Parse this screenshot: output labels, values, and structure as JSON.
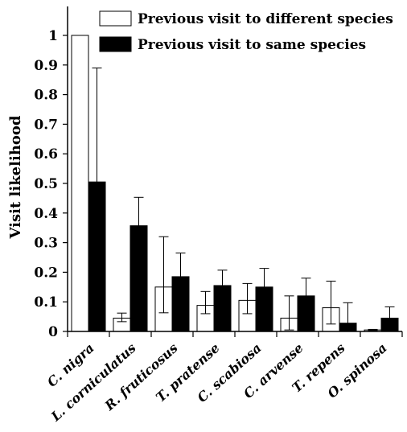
{
  "chart_data": {
    "type": "bar",
    "ylabel": "Visit likelihood",
    "ylim": [
      0,
      1.05
    ],
    "yticks": [
      0,
      0.1,
      0.2,
      0.3,
      0.4,
      0.5,
      0.6,
      0.7,
      0.8,
      0.9,
      1
    ],
    "ytick_labels": [
      "0",
      "0.1",
      "0.2",
      "0.3",
      "0.4",
      "0.5",
      "0.6",
      "0.7",
      "0.8",
      "0.9",
      "1"
    ],
    "categories": [
      "C. nigra",
      "L. corniculatus",
      "R. fruticosus",
      "T. pratense",
      "C. scabiosa",
      "C. arvense",
      "T. repens",
      "O. spinosa"
    ],
    "legend_position": "top-right",
    "series": [
      {
        "name": "Previous visit to different species",
        "color": "#ffffff",
        "values": [
          1.0,
          0.045,
          0.15,
          0.088,
          0.105,
          0.045,
          0.08,
          0.005
        ],
        "err_low": [
          1.0,
          0.033,
          0.063,
          0.06,
          0.06,
          0.005,
          0.025,
          0.003
        ],
        "err_high": [
          1.0,
          0.062,
          0.32,
          0.135,
          0.162,
          0.12,
          0.17,
          0.007
        ]
      },
      {
        "name": "Previous visit to same species",
        "color": "#000000",
        "values": [
          0.505,
          0.357,
          0.185,
          0.155,
          0.15,
          0.12,
          0.028,
          0.045
        ],
        "err_low": [
          0.505,
          0.357,
          0.185,
          0.155,
          0.15,
          0.12,
          0.028,
          0.045
        ],
        "err_high": [
          0.89,
          0.453,
          0.265,
          0.207,
          0.213,
          0.18,
          0.097,
          0.083
        ]
      }
    ]
  }
}
